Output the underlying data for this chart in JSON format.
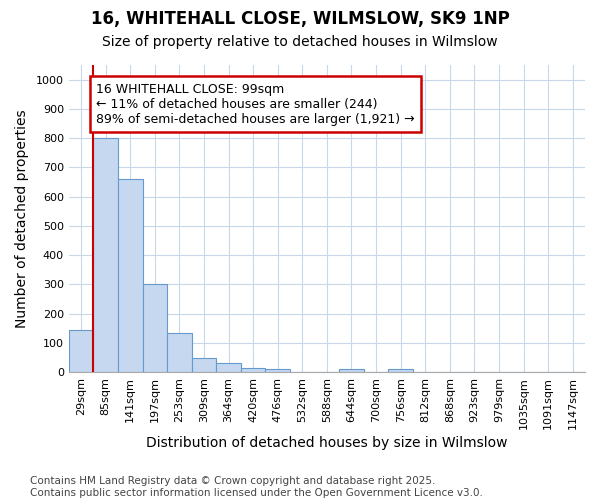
{
  "title_line1": "16, WHITEHALL CLOSE, WILMSLOW, SK9 1NP",
  "title_line2": "Size of property relative to detached houses in Wilmslow",
  "xlabel": "Distribution of detached houses by size in Wilmslow",
  "ylabel": "Number of detached properties",
  "bar_color": "#c5d8f0",
  "bar_edge_color": "#6699cc",
  "background_color": "#ffffff",
  "plot_bg_color": "#ffffff",
  "grid_color": "#c8d8e8",
  "categories": [
    "29sqm",
    "85sqm",
    "141sqm",
    "197sqm",
    "253sqm",
    "309sqm",
    "364sqm",
    "420sqm",
    "476sqm",
    "532sqm",
    "588sqm",
    "644sqm",
    "700sqm",
    "756sqm",
    "812sqm",
    "868sqm",
    "923sqm",
    "979sqm",
    "1035sqm",
    "1091sqm",
    "1147sqm"
  ],
  "values": [
    145,
    800,
    660,
    300,
    135,
    50,
    30,
    15,
    10,
    0,
    0,
    10,
    0,
    10,
    0,
    0,
    0,
    0,
    0,
    0,
    0
  ],
  "ylim": [
    0,
    1050
  ],
  "yticks": [
    0,
    100,
    200,
    300,
    400,
    500,
    600,
    700,
    800,
    900,
    1000
  ],
  "annotation_text": "16 WHITEHALL CLOSE: 99sqm\n← 11% of detached houses are smaller (244)\n89% of semi-detached houses are larger (1,921) →",
  "annotation_box_color": "#ffffff",
  "annotation_box_edge_color": "#cc0000",
  "vline_color": "#cc0000",
  "footer_line1": "Contains HM Land Registry data © Crown copyright and database right 2025.",
  "footer_line2": "Contains public sector information licensed under the Open Government Licence v3.0.",
  "title_fontsize": 12,
  "subtitle_fontsize": 10,
  "annotation_fontsize": 9,
  "footer_fontsize": 7.5,
  "tick_fontsize": 8,
  "label_fontsize": 10,
  "vline_x": 0.5
}
